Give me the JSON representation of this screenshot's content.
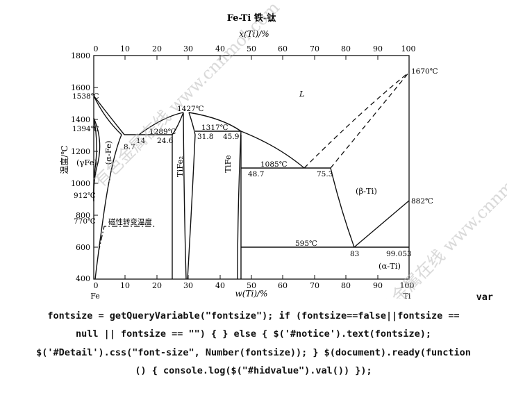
{
  "chart_data": {
    "type": "phase-diagram",
    "title": "Fe-Ti  铁-钛",
    "top_axis_label": "x(Ti)/%",
    "bottom_axis_label": "w(Ti)/%",
    "ylabel": "温度/℃",
    "left_element": "Fe",
    "right_element": "Ti",
    "ylim": [
      400,
      1800
    ],
    "xlim": [
      0,
      100
    ],
    "y_ticks": [
      "400",
      "600",
      "800",
      "1000",
      "1200",
      "1400",
      "1600",
      "1800"
    ],
    "x_ticks": [
      "0",
      "10",
      "20",
      "30",
      "40",
      "50",
      "60",
      "70",
      "80",
      "90",
      "100"
    ],
    "phase_labels": [
      "L",
      "(α-Fe)",
      "(γFe)",
      "TiFe₂",
      "TiFe",
      "(β-Ti)",
      "(α-Ti)"
    ],
    "temperature_labels": [
      "1538℃",
      "1394℃",
      "912℃",
      "770℃",
      "1427℃",
      "1289℃",
      "1317℃",
      "1085℃",
      "595℃",
      "1670℃",
      "882℃"
    ],
    "composition_labels": [
      "8.7",
      "14",
      "24.6",
      "31.8",
      "45.9",
      "48.7",
      "75.3",
      "83",
      "99.053"
    ],
    "magnetic_label": "磁性转变温度",
    "watermark": "有色金属在线 www.cnnmol.com"
  },
  "code_text": {
    "line1": "var",
    "line2": "fontsize = getQueryVariable(\"fontsize\"); if (fontsize==false||fontsize ==",
    "line3": "null || fontsize == \"\") { } else { $('#notice').text(fontsize);",
    "line4": "$('#Detail').css(\"font-size\", Number(fontsize)); } $(document).ready(function",
    "line5": "() { console.log($(\"#hidvalue\").val()) });"
  }
}
